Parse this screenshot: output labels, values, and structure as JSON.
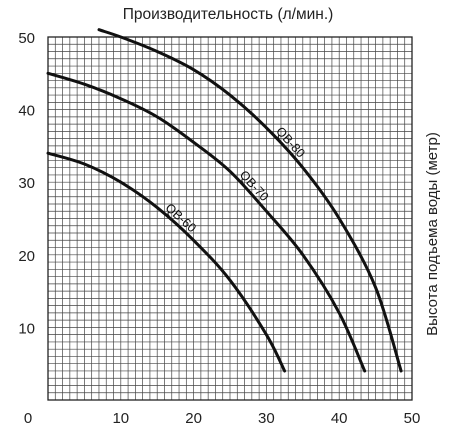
{
  "chart_data": {
    "type": "line",
    "title": "Производительность (л/мин.)",
    "xlabel": "",
    "ylabel": "Высота подъема воды (метр)",
    "xlim": [
      0,
      50
    ],
    "ylim": [
      0,
      50
    ],
    "xticks": [
      "10",
      "20",
      "30",
      "40",
      "50"
    ],
    "yticks": [
      "10",
      "20",
      "30",
      "40",
      "50"
    ],
    "origin_label": "0",
    "grid": true,
    "series": [
      {
        "name": "QB-60",
        "x": [
          0,
          5,
          10,
          15,
          20,
          25,
          30,
          32.5
        ],
        "y": [
          34,
          32.5,
          30,
          26.5,
          22,
          16.5,
          9,
          4
        ]
      },
      {
        "name": "QB-70",
        "x": [
          0,
          5,
          10,
          15,
          20,
          25,
          30,
          35,
          40,
          43.5
        ],
        "y": [
          45,
          43.5,
          41.5,
          39,
          35.5,
          31.5,
          26,
          20,
          12,
          4
        ]
      },
      {
        "name": "QB-80",
        "x": [
          7,
          10,
          15,
          20,
          25,
          30,
          35,
          40,
          45,
          48.5
        ],
        "y": [
          51,
          50,
          48,
          45.5,
          42,
          37.5,
          32,
          25,
          15.5,
          4
        ]
      }
    ]
  }
}
